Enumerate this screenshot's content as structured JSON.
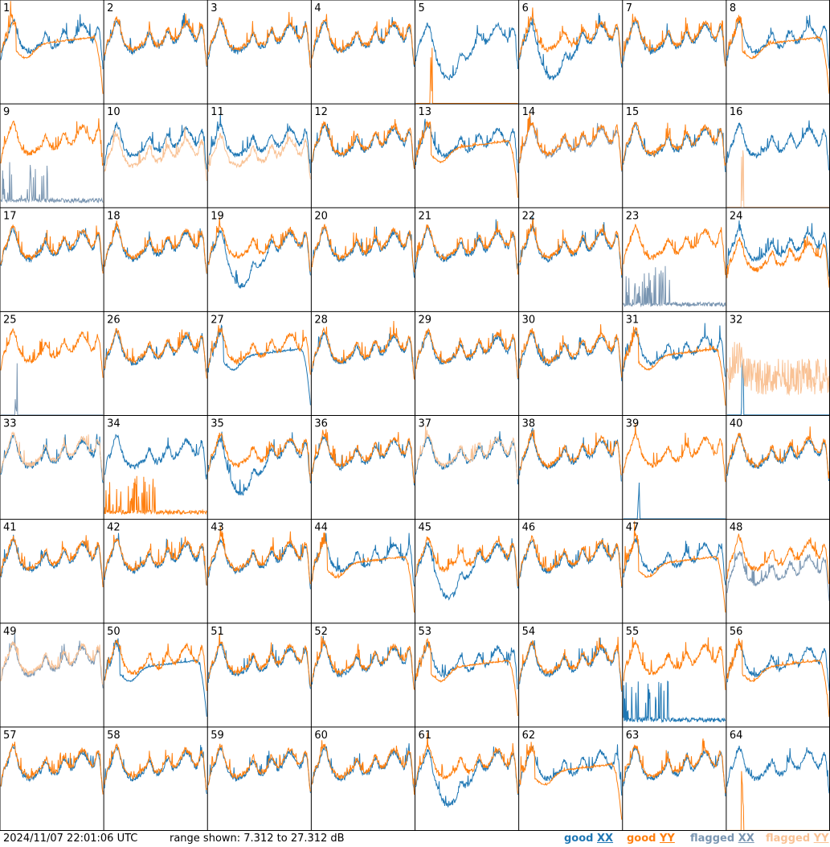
{
  "colors": {
    "good_xx": "#1f77b4",
    "good_yy": "#ff7f0e",
    "flagged_xx": "#7a96b2",
    "flagged_yy": "#f9c295",
    "grid": "#000000",
    "background": "#ffffff"
  },
  "footer": {
    "timestamp": "2024/11/07 22:01:06 UTC",
    "range_text": "range shown: 7.312 to 27.312 dB",
    "legend": [
      {
        "word": "good",
        "pol": "XX",
        "color": "#1f77b4"
      },
      {
        "word": "good",
        "pol": "YY",
        "color": "#ff7f0e"
      },
      {
        "word": "flagged",
        "pol": "XX",
        "color": "#7a96b2"
      },
      {
        "word": "flagged",
        "pol": "YY",
        "color": "#f9c295"
      }
    ]
  },
  "chart_data": {
    "type": "line",
    "layout": "8x8 small multiples",
    "range_db": [
      7.312,
      27.312
    ],
    "panel_labels": [
      "1",
      "2",
      "3",
      "4",
      "5",
      "6",
      "7",
      "8",
      "9",
      "10",
      "11",
      "12",
      "13",
      "14",
      "15",
      "16",
      "17",
      "18",
      "19",
      "20",
      "21",
      "22",
      "23",
      "24",
      "25",
      "26",
      "27",
      "28",
      "29",
      "30",
      "31",
      "32",
      "33",
      "34",
      "35",
      "36",
      "37",
      "38",
      "39",
      "40",
      "41",
      "42",
      "43",
      "44",
      "45",
      "46",
      "47",
      "48",
      "49",
      "50",
      "51",
      "52",
      "53",
      "54",
      "55",
      "56",
      "57",
      "58",
      "59",
      "60",
      "61",
      "62",
      "63",
      "64"
    ],
    "panels": [
      {
        "id": 1,
        "xx": "good",
        "yy": "good",
        "yy_shape": "rolloff"
      },
      {
        "id": 2,
        "xx": "good",
        "yy": "good"
      },
      {
        "id": 3,
        "xx": "good",
        "yy": "good"
      },
      {
        "id": 4,
        "xx": "good",
        "yy": "good"
      },
      {
        "id": 5,
        "xx": "good",
        "yy": "good",
        "xx_shape": "dip",
        "yy_shape": "dead"
      },
      {
        "id": 6,
        "xx": "good",
        "yy": "good",
        "xx_shape": "dip"
      },
      {
        "id": 7,
        "xx": "good",
        "yy": "good"
      },
      {
        "id": 8,
        "xx": "good",
        "yy": "good",
        "yy_shape": "rolloff"
      },
      {
        "id": 9,
        "xx": "flagged",
        "yy": "good",
        "xx_shape": "spiky_low"
      },
      {
        "id": 10,
        "xx": "good",
        "yy": "flagged",
        "yy_shape": "low"
      },
      {
        "id": 11,
        "xx": "good",
        "yy": "flagged",
        "yy_shape": "low"
      },
      {
        "id": 12,
        "xx": "good",
        "yy": "good"
      },
      {
        "id": 13,
        "xx": "good",
        "yy": "good",
        "yy_shape": "rolloff"
      },
      {
        "id": 14,
        "xx": "flagged",
        "yy": "good"
      },
      {
        "id": 15,
        "xx": "good",
        "yy": "good"
      },
      {
        "id": 16,
        "xx": "good",
        "yy": "flagged",
        "yy_shape": "dead"
      },
      {
        "id": 17,
        "xx": "good",
        "yy": "good"
      },
      {
        "id": 18,
        "xx": "good",
        "yy": "good"
      },
      {
        "id": 19,
        "xx": "good",
        "yy": "good",
        "xx_shape": "dip"
      },
      {
        "id": 20,
        "xx": "good",
        "yy": "good"
      },
      {
        "id": 21,
        "xx": "good",
        "yy": "good"
      },
      {
        "id": 22,
        "xx": "good",
        "yy": "good"
      },
      {
        "id": 23,
        "xx": "flagged",
        "yy": "good",
        "xx_shape": "spiky_low"
      },
      {
        "id": 24,
        "xx": "good",
        "yy": "good",
        "yy_shape": "low"
      },
      {
        "id": 25,
        "xx": "flagged",
        "yy": "good",
        "xx_shape": "dead"
      },
      {
        "id": 26,
        "xx": "good",
        "yy": "good"
      },
      {
        "id": 27,
        "xx": "good",
        "yy": "good",
        "xx_shape": "rolloff"
      },
      {
        "id": 28,
        "xx": "good",
        "yy": "good"
      },
      {
        "id": 29,
        "xx": "good",
        "yy": "good"
      },
      {
        "id": 30,
        "xx": "good",
        "yy": "good"
      },
      {
        "id": 31,
        "xx": "good",
        "yy": "good",
        "yy_shape": "rolloff"
      },
      {
        "id": 32,
        "xx": "good",
        "yy": "flagged",
        "xx_shape": "dead",
        "yy_shape": "spiky_high"
      },
      {
        "id": 33,
        "xx": "good",
        "yy": "flagged"
      },
      {
        "id": 34,
        "xx": "good",
        "yy": "good",
        "yy_shape": "spiky_low"
      },
      {
        "id": 35,
        "xx": "good",
        "yy": "good",
        "xx_shape": "dip"
      },
      {
        "id": 36,
        "xx": "good",
        "yy": "good"
      },
      {
        "id": 37,
        "xx": "good",
        "yy": "flagged"
      },
      {
        "id": 38,
        "xx": "good",
        "yy": "good"
      },
      {
        "id": 39,
        "xx": "good",
        "yy": "good",
        "xx_shape": "dead"
      },
      {
        "id": 40,
        "xx": "good",
        "yy": "good"
      },
      {
        "id": 41,
        "xx": "good",
        "yy": "good"
      },
      {
        "id": 42,
        "xx": "good",
        "yy": "good"
      },
      {
        "id": 43,
        "xx": "good",
        "yy": "good"
      },
      {
        "id": 44,
        "xx": "good",
        "yy": "good",
        "yy_shape": "rolloff"
      },
      {
        "id": 45,
        "xx": "good",
        "yy": "good",
        "xx_shape": "dip"
      },
      {
        "id": 46,
        "xx": "good",
        "yy": "good"
      },
      {
        "id": 47,
        "xx": "good",
        "yy": "good",
        "yy_shape": "rolloff"
      },
      {
        "id": 48,
        "xx": "flagged",
        "yy": "good",
        "xx_shape": "low"
      },
      {
        "id": 49,
        "xx": "flagged",
        "yy": "flagged"
      },
      {
        "id": 50,
        "xx": "good",
        "yy": "good",
        "xx_shape": "rolloff"
      },
      {
        "id": 51,
        "xx": "good",
        "yy": "good"
      },
      {
        "id": 52,
        "xx": "good",
        "yy": "good"
      },
      {
        "id": 53,
        "xx": "good",
        "yy": "good",
        "yy_shape": "rolloff"
      },
      {
        "id": 54,
        "xx": "good",
        "yy": "good"
      },
      {
        "id": 55,
        "xx": "good",
        "yy": "good",
        "xx_shape": "spiky_low"
      },
      {
        "id": 56,
        "xx": "good",
        "yy": "good",
        "yy_shape": "rolloff"
      },
      {
        "id": 57,
        "xx": "good",
        "yy": "good"
      },
      {
        "id": 58,
        "xx": "good",
        "yy": "good"
      },
      {
        "id": 59,
        "xx": "good",
        "yy": "good"
      },
      {
        "id": 60,
        "xx": "good",
        "yy": "good"
      },
      {
        "id": 61,
        "xx": "good",
        "yy": "good",
        "xx_shape": "dip"
      },
      {
        "id": 62,
        "xx": "good",
        "yy": "good",
        "yy_shape": "rolloff"
      },
      {
        "id": 63,
        "xx": "good",
        "yy": "good"
      },
      {
        "id": 64,
        "xx": "good",
        "yy": "good",
        "yy_shape": "dead"
      }
    ]
  }
}
